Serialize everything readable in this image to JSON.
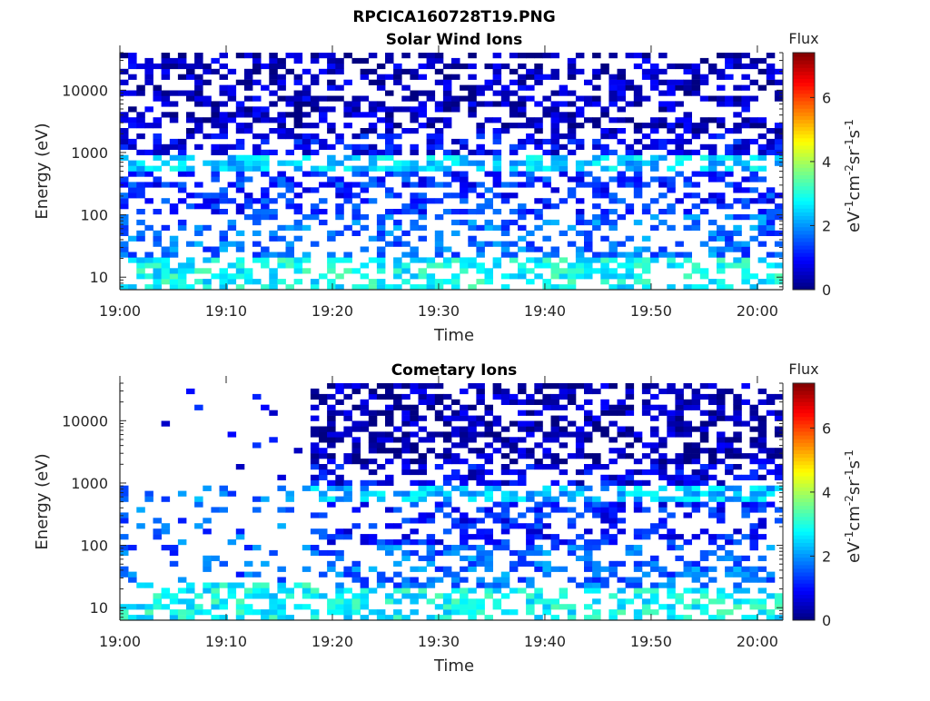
{
  "figure_title": "RPCICA160728T19.PNG",
  "chart_data": [
    {
      "type": "heatmap",
      "title": "Solar Wind Ions",
      "xlabel": "Time",
      "ylabel": "Energy (eV)",
      "xlim_minutes_after_1900": [
        0,
        62.4
      ],
      "x_tick_labels": [
        "19:00",
        "19:10",
        "19:20",
        "19:30",
        "19:40",
        "19:50",
        "20:00"
      ],
      "x_tick_minutes": [
        0,
        10,
        20,
        30,
        40,
        50,
        60
      ],
      "yscale": "log",
      "ylim": [
        6.3,
        40000
      ],
      "y_tick_labels": [
        "10",
        "100",
        "1000",
        "10000"
      ],
      "y_tick_values": [
        10,
        100,
        1000,
        10000
      ],
      "colorbar": {
        "title": "Flux",
        "label": "eV-1cm-2sr-1s-1",
        "range": [
          0,
          7.4
        ],
        "tick_labels": [
          "0",
          "2",
          "4",
          "6"
        ],
        "tick_values": [
          0,
          2,
          4,
          6
        ],
        "colormap": "jet"
      },
      "time_bins": 80,
      "energy_bins": 44,
      "seed": 11,
      "bands": [
        {
          "emin": 2000,
          "emax": 40000,
          "level": 0.45,
          "fill_prob": 0.5
        },
        {
          "emin": 900,
          "emax": 2000,
          "level": 0.9,
          "fill_prob": 0.5
        },
        {
          "emin": 550,
          "emax": 900,
          "level": 2.4,
          "fill_prob": 0.6
        },
        {
          "emin": 100,
          "emax": 550,
          "level": 1.2,
          "fill_prob": 0.45
        },
        {
          "emin": 20,
          "emax": 100,
          "level": 1.7,
          "fill_prob": 0.4
        },
        {
          "emin": 6,
          "emax": 20,
          "level": 2.8,
          "fill_prob": 0.55
        }
      ]
    },
    {
      "type": "heatmap",
      "title": "Cometary Ions",
      "xlabel": "Time",
      "ylabel": "Energy (eV)",
      "xlim_minutes_after_1900": [
        0,
        62.4
      ],
      "x_tick_labels": [
        "19:00",
        "19:10",
        "19:20",
        "19:30",
        "19:40",
        "19:50",
        "20:00"
      ],
      "x_tick_minutes": [
        0,
        10,
        20,
        30,
        40,
        50,
        60
      ],
      "yscale": "log",
      "ylim": [
        6.3,
        40000
      ],
      "y_tick_labels": [
        "10",
        "100",
        "1000",
        "10000"
      ],
      "y_tick_values": [
        10,
        100,
        1000,
        10000
      ],
      "colorbar": {
        "title": "Flux",
        "label": "eV-1cm-2sr-1s-1",
        "range": [
          0,
          7.4
        ],
        "tick_labels": [
          "0",
          "2",
          "4",
          "6"
        ],
        "tick_values": [
          0,
          2,
          4,
          6
        ],
        "colormap": "jet"
      },
      "time_bins": 80,
      "energy_bins": 44,
      "seed": 11,
      "sparse_until_minute": 17.8,
      "sparse_bands": [
        {
          "emin": 900,
          "emax": 40000,
          "level": 0.8,
          "fill_prob": 0.03
        },
        {
          "emin": 550,
          "emax": 900,
          "level": 1.8,
          "fill_prob": 0.25
        },
        {
          "emin": 25,
          "emax": 550,
          "level": 1.6,
          "fill_prob": 0.18
        },
        {
          "emin": 6,
          "emax": 25,
          "level": 2.8,
          "fill_prob": 0.55
        }
      ],
      "bands": [
        {
          "emin": 2000,
          "emax": 40000,
          "level": 0.35,
          "fill_prob": 0.55
        },
        {
          "emin": 900,
          "emax": 2000,
          "level": 0.8,
          "fill_prob": 0.5
        },
        {
          "emin": 550,
          "emax": 900,
          "level": 2.3,
          "fill_prob": 0.6
        },
        {
          "emin": 100,
          "emax": 550,
          "level": 1.1,
          "fill_prob": 0.45
        },
        {
          "emin": 20,
          "emax": 100,
          "level": 1.7,
          "fill_prob": 0.4
        },
        {
          "emin": 6,
          "emax": 20,
          "level": 2.8,
          "fill_prob": 0.55
        }
      ]
    }
  ]
}
